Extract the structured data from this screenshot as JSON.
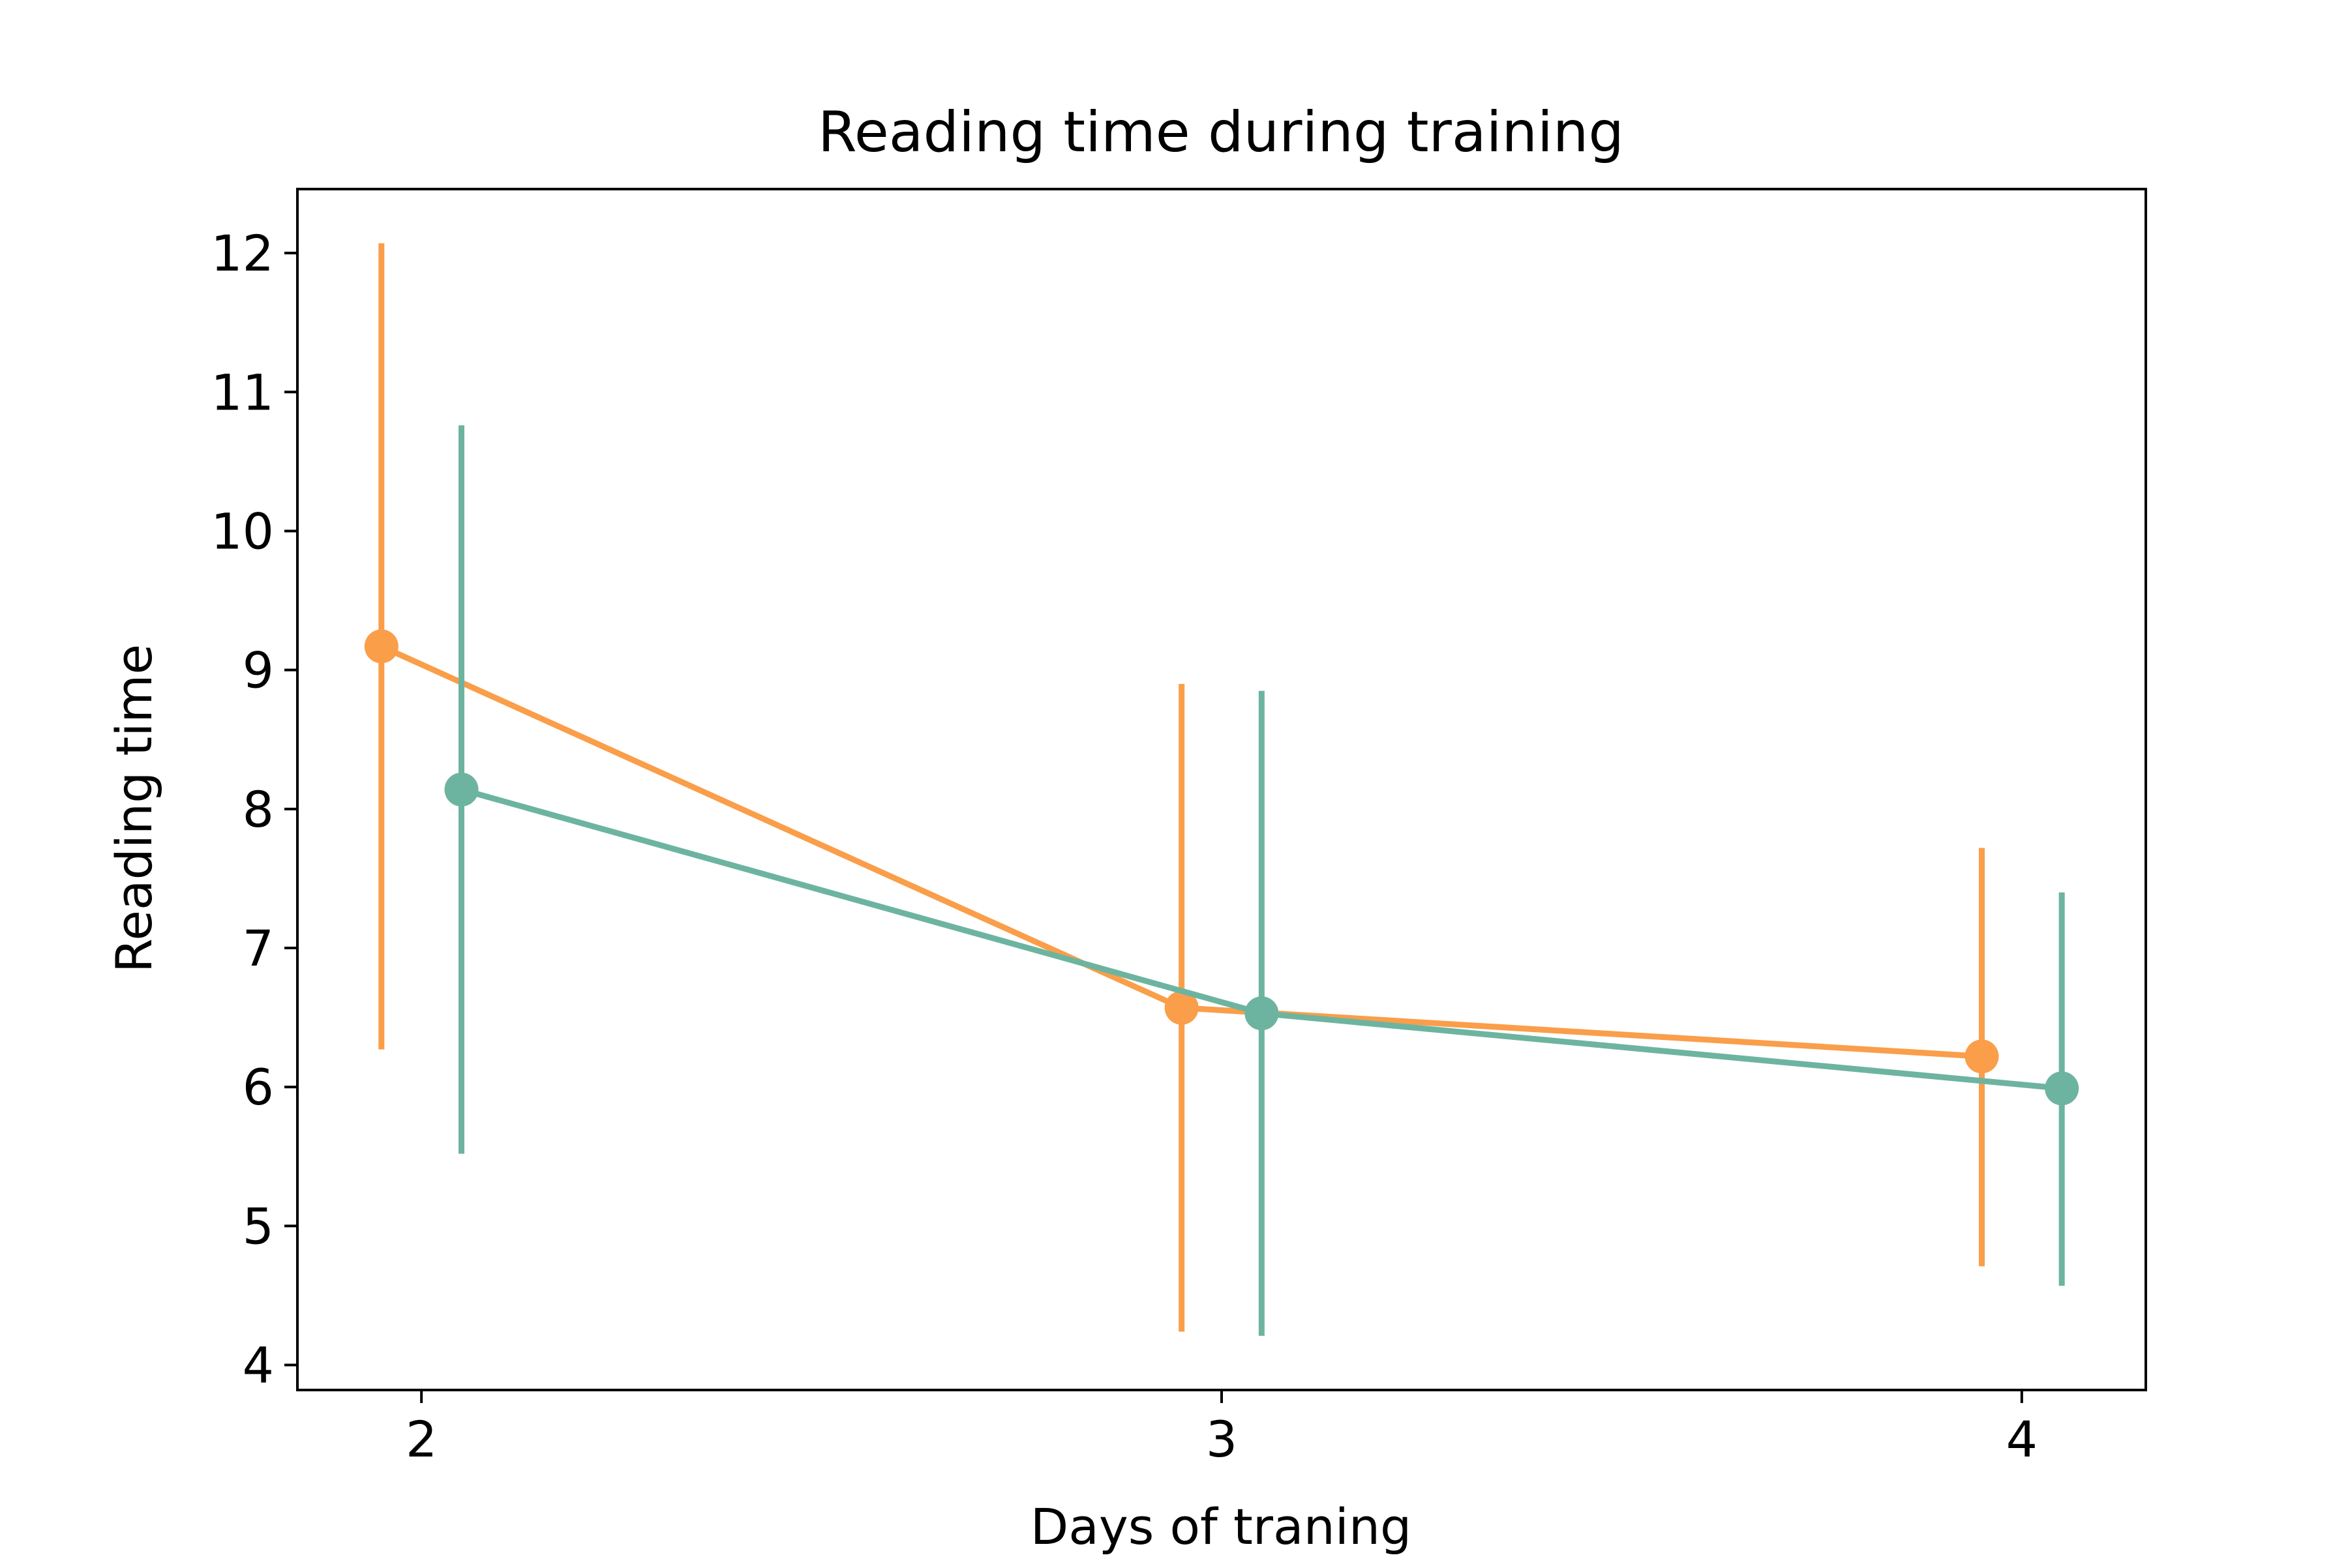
{
  "chart_data": {
    "type": "line",
    "title": "Reading time during training",
    "xlabel": "Days of traning",
    "ylabel": "Reading time",
    "x": [
      2,
      3,
      4
    ],
    "xticks": [
      "2",
      "3",
      "4"
    ],
    "yticks": [
      "4",
      "5",
      "6",
      "7",
      "8",
      "9",
      "10",
      "11",
      "12"
    ],
    "ylim": [
      3.82,
      12.46
    ],
    "xlim": [
      1.845,
      4.155
    ],
    "grid": false,
    "series": [
      {
        "color": "#fa9e4a",
        "x": [
          2,
          3,
          4
        ],
        "values": [
          9.17,
          6.57,
          6.22
        ],
        "error_low": [
          6.27,
          4.24,
          4.71
        ],
        "error_high": [
          12.07,
          8.9,
          7.72
        ]
      },
      {
        "color": "#6db4a0",
        "x": [
          2,
          3,
          4
        ],
        "values": [
          8.14,
          6.53,
          5.99
        ],
        "error_low": [
          5.52,
          4.21,
          4.57
        ],
        "error_high": [
          10.76,
          8.85,
          7.4
        ]
      }
    ]
  }
}
